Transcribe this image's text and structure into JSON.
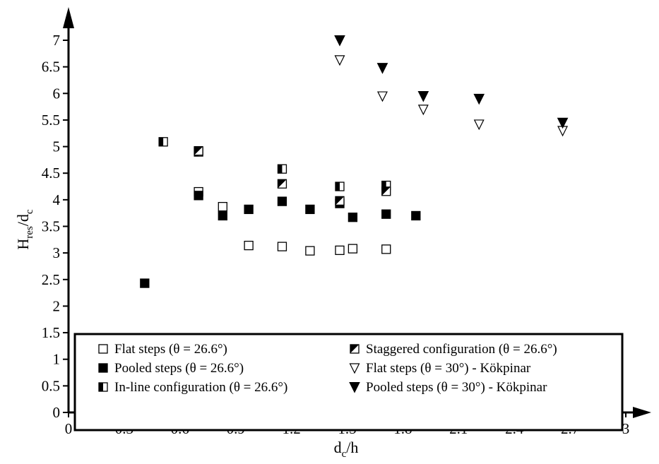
{
  "chart_data": {
    "type": "scatter",
    "xlabel": {
      "main": "d",
      "sub": "c",
      "rest": "/h"
    },
    "ylabel": {
      "main": "H",
      "sub1": "res",
      "mid": "/d",
      "sub2": "c"
    },
    "xlim": [
      0,
      3
    ],
    "ylim": [
      0,
      7
    ],
    "x_ticks": [
      "0",
      "0.3",
      "0.6",
      "0.9",
      "1.2",
      "1.5",
      "1.8",
      "2.1",
      "2.4",
      "2.7",
      "3"
    ],
    "y_ticks": [
      "0",
      "0.5",
      "1",
      "1.5",
      "2",
      "2.5",
      "3",
      "3.5",
      "4",
      "4.5",
      "5",
      "5.5",
      "6",
      "6.5",
      "7"
    ],
    "grid": false,
    "legend_position": "bottom",
    "series": [
      {
        "name": "Flat steps (θ = 26.6°)",
        "marker": "open-square",
        "points": [
          [
            0.7,
            4.15
          ],
          [
            0.83,
            3.87
          ],
          [
            0.97,
            3.14
          ],
          [
            1.15,
            3.12
          ],
          [
            1.3,
            3.04
          ],
          [
            1.46,
            3.05
          ],
          [
            1.53,
            3.08
          ],
          [
            1.71,
            3.07
          ]
        ]
      },
      {
        "name": "Pooled steps (θ = 26.6°)",
        "marker": "filled-square",
        "points": [
          [
            0.41,
            2.43
          ],
          [
            0.7,
            4.08
          ],
          [
            0.83,
            3.7
          ],
          [
            0.97,
            3.82
          ],
          [
            1.15,
            3.97
          ],
          [
            1.3,
            3.82
          ],
          [
            1.46,
            3.93
          ],
          [
            1.53,
            3.67
          ],
          [
            1.71,
            3.73
          ],
          [
            1.87,
            3.7
          ]
        ]
      },
      {
        "name": "In-line configuration (θ = 26.6°)",
        "marker": "half-square-left",
        "points": [
          [
            0.51,
            5.09
          ],
          [
            0.7,
            4.9
          ],
          [
            1.15,
            4.58
          ],
          [
            1.46,
            4.25
          ],
          [
            1.71,
            4.27
          ]
        ]
      },
      {
        "name": "Staggered configuration (θ = 26.6°)",
        "marker": "diagonal-square",
        "points": [
          [
            0.7,
            4.92
          ],
          [
            1.15,
            4.3
          ],
          [
            1.46,
            3.98
          ],
          [
            1.71,
            4.16
          ]
        ]
      },
      {
        "name": "Flat steps  (θ = 30°) - Kökpinar",
        "marker": "open-triangle-down",
        "points": [
          [
            1.46,
            6.63
          ],
          [
            1.69,
            5.95
          ],
          [
            1.91,
            5.7
          ],
          [
            2.21,
            5.42
          ],
          [
            2.66,
            5.3
          ]
        ]
      },
      {
        "name": "Pooled steps  (θ = 30°) - Kökpinar",
        "marker": "filled-triangle-down",
        "points": [
          [
            1.46,
            7.0
          ],
          [
            1.69,
            6.48
          ],
          [
            1.91,
            5.95
          ],
          [
            2.21,
            5.9
          ],
          [
            2.66,
            5.45
          ]
        ]
      }
    ]
  }
}
